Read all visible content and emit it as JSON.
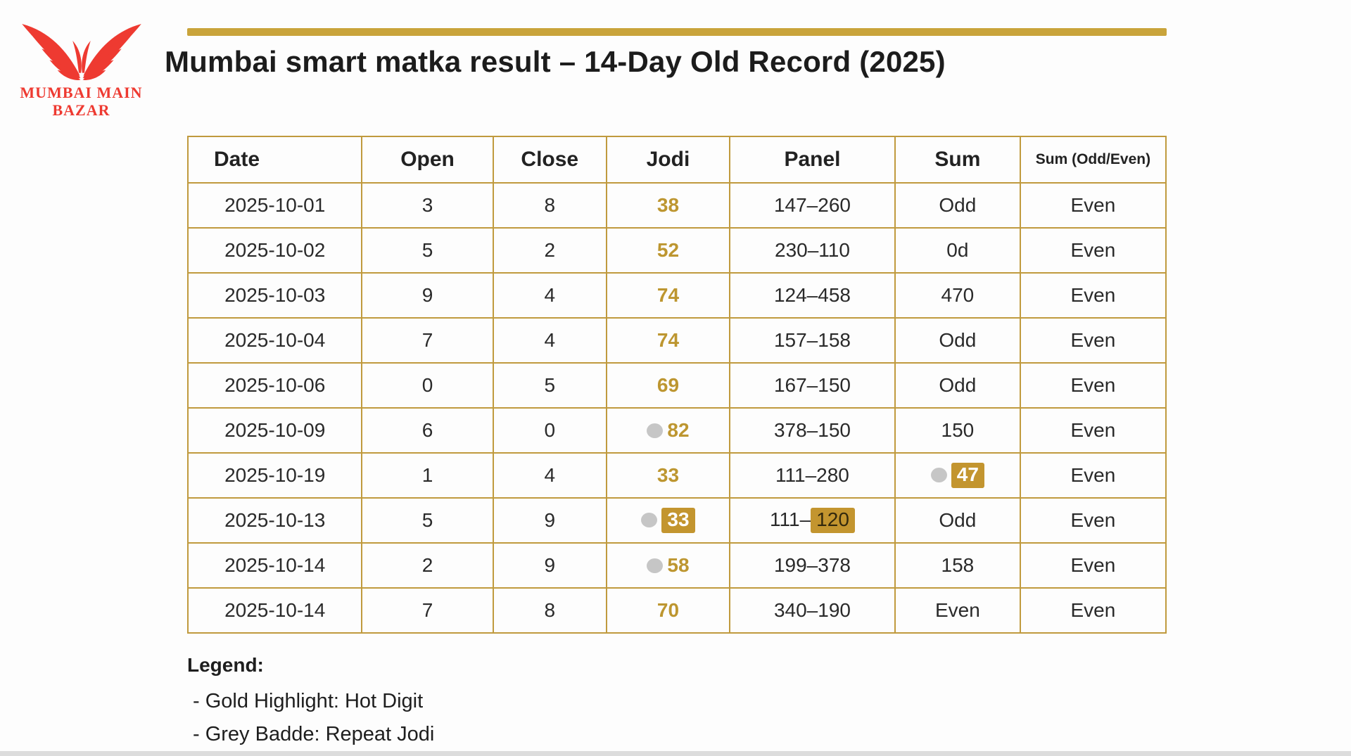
{
  "logo": {
    "line1": "MUMBAI MAIN",
    "line2": "BAZAR",
    "color": "#ee3a31"
  },
  "title": "Mumbai smart matka result – 14-Day Old Record (2025)",
  "colors": {
    "gold_border": "#c09a3e",
    "gold_rule": "#c9a43b",
    "gold_text": "#bd9630",
    "gold_highlight": "#c3952f",
    "grey_badge": "#c6c6c6",
    "logo_red": "#ee3a31"
  },
  "table": {
    "columns": [
      {
        "key": "date",
        "label": "Date",
        "align": "left"
      },
      {
        "key": "open",
        "label": "Open"
      },
      {
        "key": "close",
        "label": "Close"
      },
      {
        "key": "jodi",
        "label": "Jodi"
      },
      {
        "key": "panel",
        "label": "Panel"
      },
      {
        "key": "sum",
        "label": "Sum"
      },
      {
        "key": "sum-odd-even",
        "label": "Sum (Odd/Even)",
        "small": true
      }
    ],
    "rows": [
      {
        "cells": [
          {
            "text": "2025-10-01"
          },
          {
            "text": "3"
          },
          {
            "text": "8"
          },
          {
            "text": "38",
            "gold": true
          },
          {
            "text": "147–260"
          },
          {
            "text": "Odd"
          },
          {
            "text": "Even"
          }
        ]
      },
      {
        "cells": [
          {
            "text": "2025-10-02"
          },
          {
            "text": "5"
          },
          {
            "text": "2"
          },
          {
            "text": "52",
            "gold": true
          },
          {
            "text": "230–110"
          },
          {
            "text": "0d"
          },
          {
            "text": "Even"
          }
        ]
      },
      {
        "cells": [
          {
            "text": "2025-10-03"
          },
          {
            "text": "9"
          },
          {
            "text": "4"
          },
          {
            "text": "74",
            "gold": true
          },
          {
            "text": "124–458"
          },
          {
            "text": "470"
          },
          {
            "text": "Even"
          }
        ]
      },
      {
        "cells": [
          {
            "text": "2025-10-04"
          },
          {
            "text": "7"
          },
          {
            "text": "4"
          },
          {
            "text": "74",
            "gold": true
          },
          {
            "text": "157–158"
          },
          {
            "text": "Odd"
          },
          {
            "text": "Even"
          }
        ]
      },
      {
        "cells": [
          {
            "text": "2025-10-06"
          },
          {
            "text": "0"
          },
          {
            "text": "5"
          },
          {
            "text": "69",
            "gold": true
          },
          {
            "text": "167–150"
          },
          {
            "text": "Odd"
          },
          {
            "text": "Even"
          }
        ]
      },
      {
        "cells": [
          {
            "text": "2025-10-09"
          },
          {
            "text": "6"
          },
          {
            "text": "0"
          },
          {
            "text": "82",
            "gold": true,
            "dot": true
          },
          {
            "text": "378–150"
          },
          {
            "text": "150"
          },
          {
            "text": "Even"
          }
        ]
      },
      {
        "cells": [
          {
            "text": "2025-10-19"
          },
          {
            "text": "1"
          },
          {
            "text": "4"
          },
          {
            "text": "33",
            "gold": true
          },
          {
            "text": "111–280"
          },
          {
            "text": "47",
            "dot": true,
            "box": "white"
          },
          {
            "text": "Even"
          }
        ]
      },
      {
        "cells": [
          {
            "text": "2025-10-13"
          },
          {
            "text": "5"
          },
          {
            "text": "9"
          },
          {
            "text": "33",
            "dot": true,
            "box": "white"
          },
          {
            "prefix": "111–",
            "text": "120",
            "box": "dark"
          },
          {
            "text": "Odd"
          },
          {
            "text": "Even"
          }
        ]
      },
      {
        "cells": [
          {
            "text": "2025-10-14"
          },
          {
            "text": "2"
          },
          {
            "text": "9"
          },
          {
            "text": "58",
            "gold": true,
            "dot": true
          },
          {
            "text": "199–378"
          },
          {
            "text": "158"
          },
          {
            "text": "Even"
          }
        ]
      },
      {
        "cells": [
          {
            "text": "2025-10-14"
          },
          {
            "text": "7"
          },
          {
            "text": "8"
          },
          {
            "text": "70",
            "gold": true
          },
          {
            "text": "340–190"
          },
          {
            "text": "Even"
          },
          {
            "text": "Even"
          }
        ]
      }
    ]
  },
  "legend": {
    "heading": "Legend:",
    "items": [
      "- Gold Highlight: Hot Digit",
      "- Grey Badde: Repeat Jodi"
    ]
  }
}
